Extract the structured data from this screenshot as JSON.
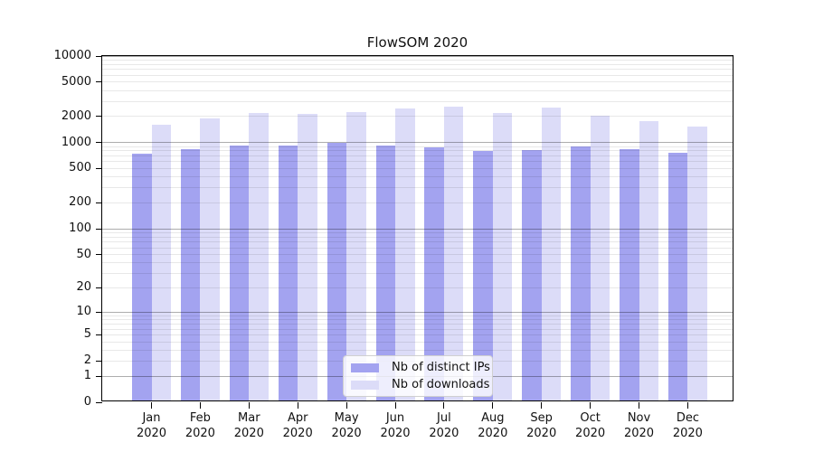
{
  "title": "FlowSOM 2020",
  "colors": {
    "distinct_ips_bar": "#a3a3f0",
    "downloads_bar": "#dcdcf8",
    "axis": "#000000",
    "grid_major": "rgba(0,0,0,0.32)",
    "grid_minor": "rgba(0,0,0,0.09)"
  },
  "chart_data": {
    "type": "bar",
    "title": "FlowSOM 2020",
    "categories": [
      "Jan 2020",
      "Feb 2020",
      "Mar 2020",
      "Apr 2020",
      "May 2020",
      "Jun 2020",
      "Jul 2020",
      "Aug 2020",
      "Sep 2020",
      "Oct 2020",
      "Nov 2020",
      "Dec 2020"
    ],
    "series": [
      {
        "name": "Nb of distinct IPs",
        "color": "#a3a3f0",
        "values": [
          710,
          800,
          890,
          880,
          940,
          880,
          840,
          760,
          780,
          850,
          800,
          720
        ]
      },
      {
        "name": "Nb of downloads",
        "color": "#dcdcf8",
        "values": [
          1550,
          1800,
          2080,
          2030,
          2130,
          2340,
          2500,
          2110,
          2400,
          1960,
          1700,
          1450
        ]
      }
    ],
    "xlabel": "",
    "ylabel": "",
    "yscale": "log1p",
    "ylim": [
      0,
      10000
    ],
    "yticks": [
      0,
      1,
      2,
      5,
      10,
      20,
      50,
      100,
      200,
      500,
      1000,
      2000,
      5000,
      10000
    ],
    "grid": "major and minor horizontal gridlines, drawn above bars",
    "legend_position": "lower center inside plot"
  }
}
